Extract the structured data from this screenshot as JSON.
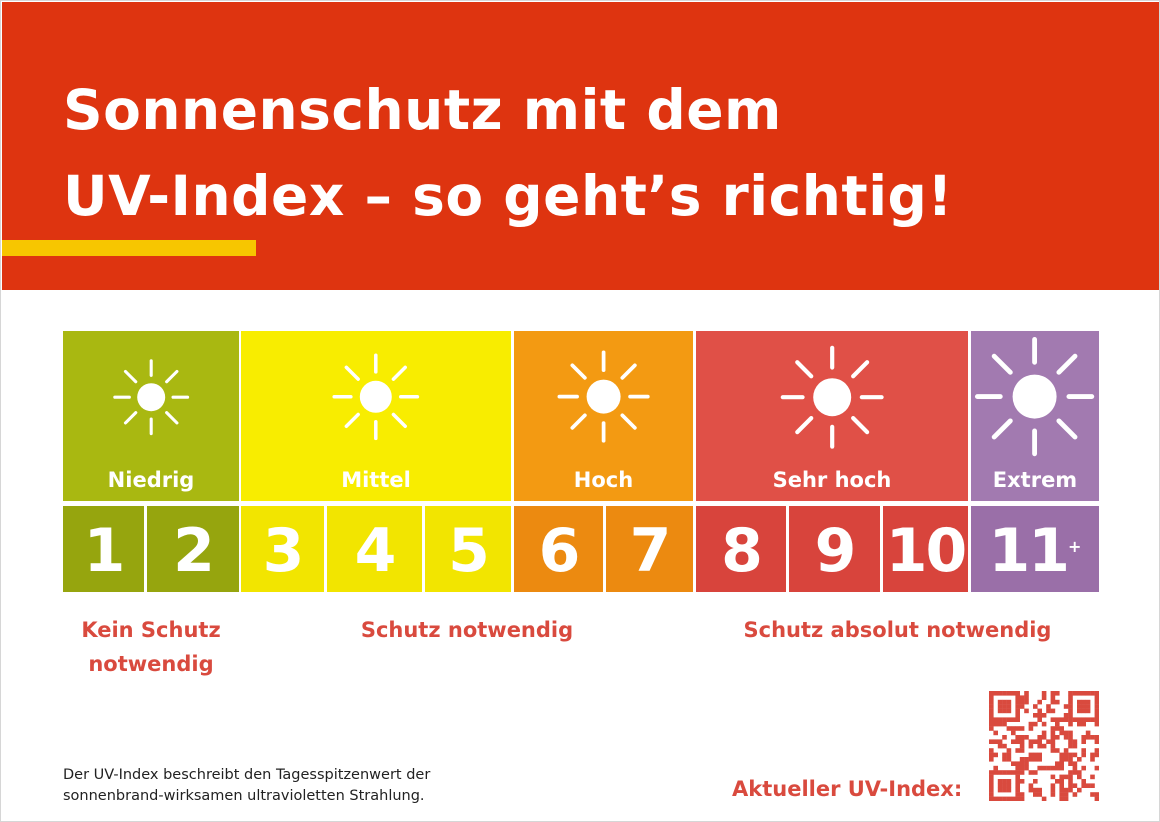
{
  "header": {
    "title": "Sonnenschutz mit dem\nUV-Index – so geht’s richtig!"
  },
  "colors": {
    "header_bg": "#de3410",
    "accent_bar": "#f7c600",
    "advice_text": "#d94a3e"
  },
  "categories": [
    {
      "label": "Niedrig",
      "color": "#a9b811",
      "icon": "sun-icon"
    },
    {
      "label": "Mittel",
      "color": "#f8ed00",
      "icon": "sun-icon"
    },
    {
      "label": "Hoch",
      "color": "#f39a12",
      "icon": "sun-icon"
    },
    {
      "label": "Sehr hoch",
      "color": "#e05047",
      "icon": "sun-icon"
    },
    {
      "label": "Extrem",
      "color": "#a27ab0",
      "icon": "sun-icon"
    }
  ],
  "scale": [
    {
      "value": "1",
      "color": "#96a50e"
    },
    {
      "value": "2",
      "color": "#96a50e"
    },
    {
      "value": "3",
      "color": "#f2e500"
    },
    {
      "value": "4",
      "color": "#f2e500"
    },
    {
      "value": "5",
      "color": "#f2e500"
    },
    {
      "value": "6",
      "color": "#ec8a10"
    },
    {
      "value": "7",
      "color": "#ec8a10"
    },
    {
      "value": "8",
      "color": "#d8443c"
    },
    {
      "value": "9",
      "color": "#d8443c"
    },
    {
      "value": "10",
      "color": "#d8443c"
    },
    {
      "value": "11",
      "suffix": "+",
      "color": "#9a6fa8"
    }
  ],
  "advice": {
    "none": "Kein Schutz\nnotwendig",
    "needed": "Schutz notwendig",
    "absolute": "Schutz absolut notwendig"
  },
  "footer": {
    "note": "Der UV-Index beschreibt den Tagesspitzenwert der\nsonnenbrand-wirksamen ultravioletten Strahlung.",
    "cta": "Aktueller UV-Index:"
  }
}
